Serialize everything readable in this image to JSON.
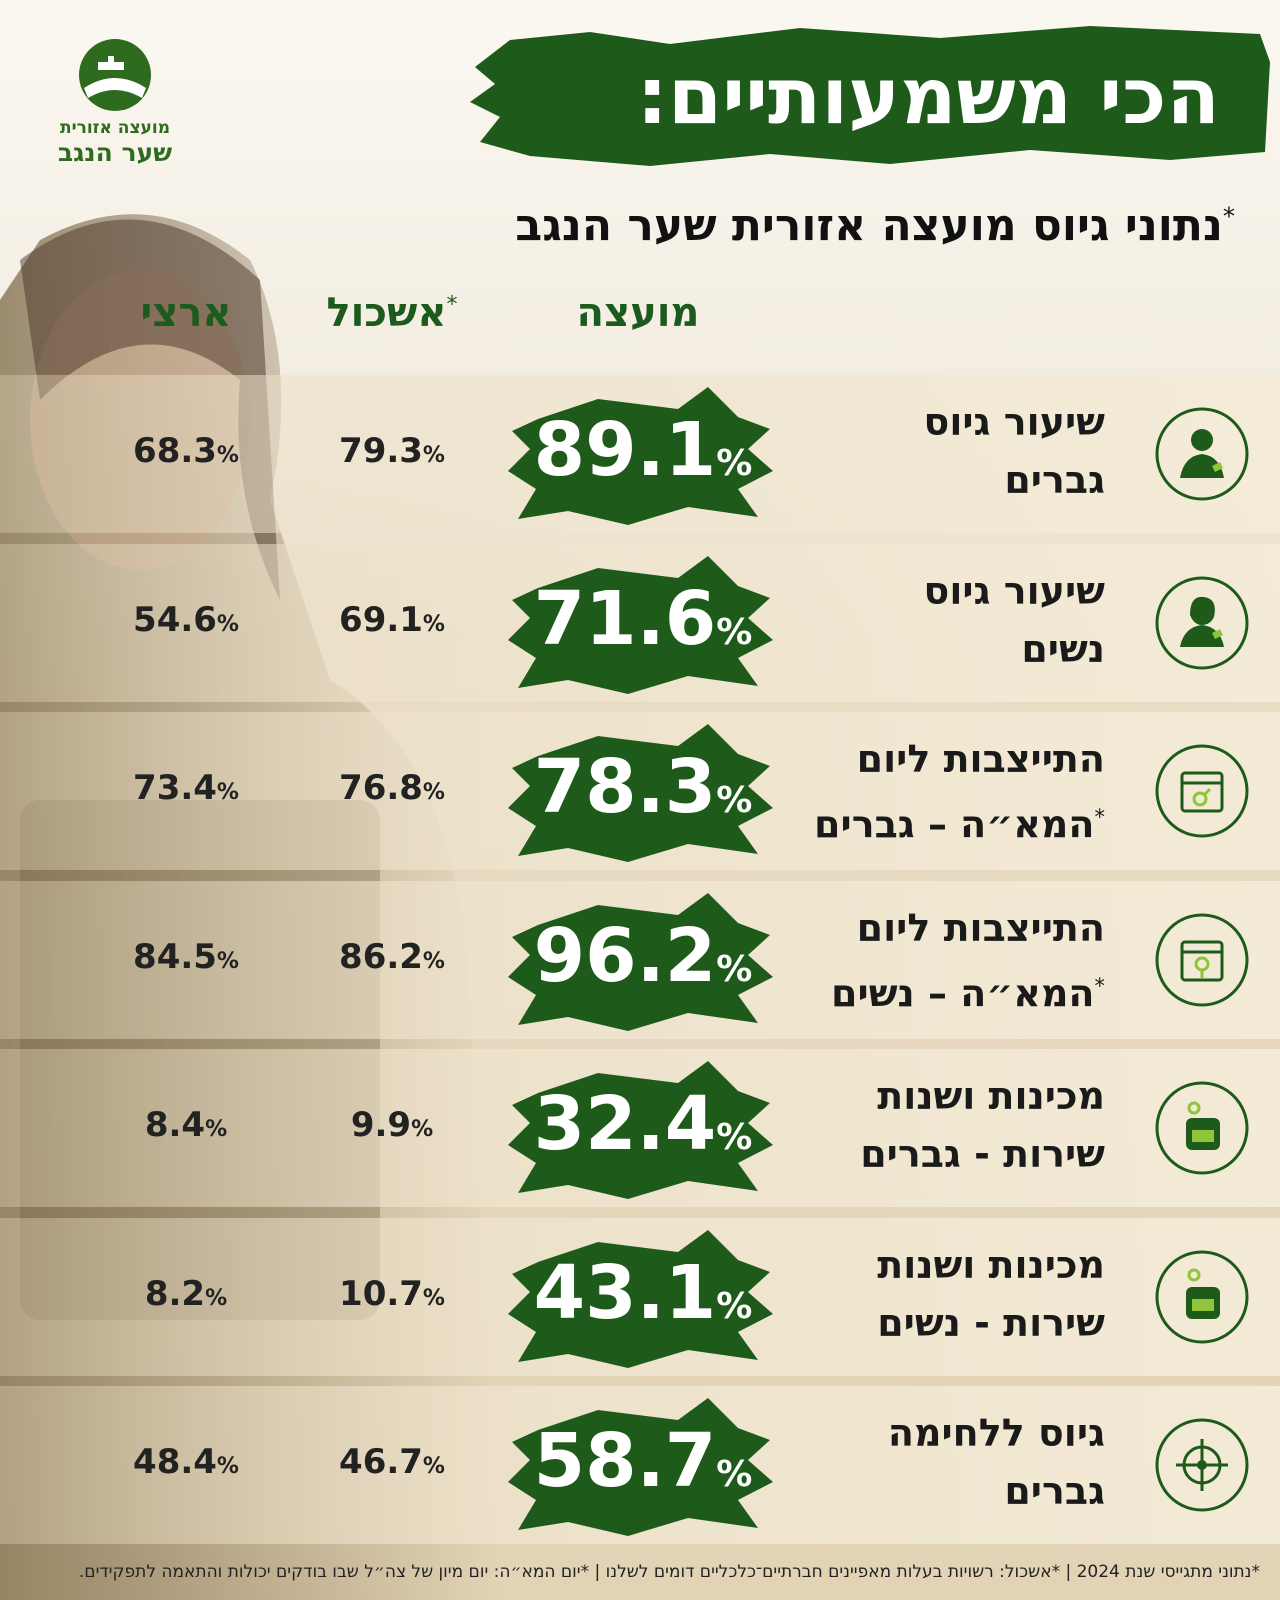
{
  "header": {
    "logo_line1": "מועצה אזורית",
    "logo_line2": "שער הנגב",
    "title": "הכי משמעותיים:",
    "subtitle": {
      "marker": "*",
      "text": "נתוני גיוס מועצה אזורית שער הנגב"
    }
  },
  "table": {
    "unit": "%",
    "columns": {
      "council": {
        "text": "מועצה"
      },
      "cluster": {
        "marker": "*",
        "text": "אשכול"
      },
      "national": {
        "text": "ארצי"
      }
    },
    "rows": [
      {
        "line1": "שיעור גיוס",
        "line2": "גברים",
        "council": 89.1,
        "cluster": 79.3,
        "national": 68.3
      },
      {
        "line1": "שיעור גיוס",
        "line2": "נשים",
        "council": 71.6,
        "cluster": 69.1,
        "national": 54.6
      },
      {
        "line1": "התייצבות ליום",
        "marker": "*",
        "line2": "המא״ה – גברים",
        "council": 78.3,
        "cluster": 76.8,
        "national": 73.4
      },
      {
        "line1": "התייצבות ליום",
        "marker": "*",
        "line2": "המא״ה – נשים",
        "council": 96.2,
        "cluster": 86.2,
        "national": 84.5
      },
      {
        "line1": "מכינות ושנות",
        "line2": "שירות - גברים",
        "council": 32.4,
        "cluster": 9.9,
        "national": 8.4
      },
      {
        "line1": "מכינות ושנות",
        "line2": "שירות - נשים",
        "council": 43.1,
        "cluster": 10.7,
        "national": 8.2
      },
      {
        "line1": "גיוס ללחימה",
        "line2": "גברים",
        "council": 58.7,
        "cluster": 46.7,
        "national": 48.4
      }
    ]
  },
  "footer": "*נתוני מתגייסי שנת 2024 | *אשכול: רשויות בעלות מאפיינים חברתיים־כלכליים דומים לשלנו | *יום המא״ה: יום מיון של צה״ל שבו בודקים יכולות והתאמה לתפקידים."
}
